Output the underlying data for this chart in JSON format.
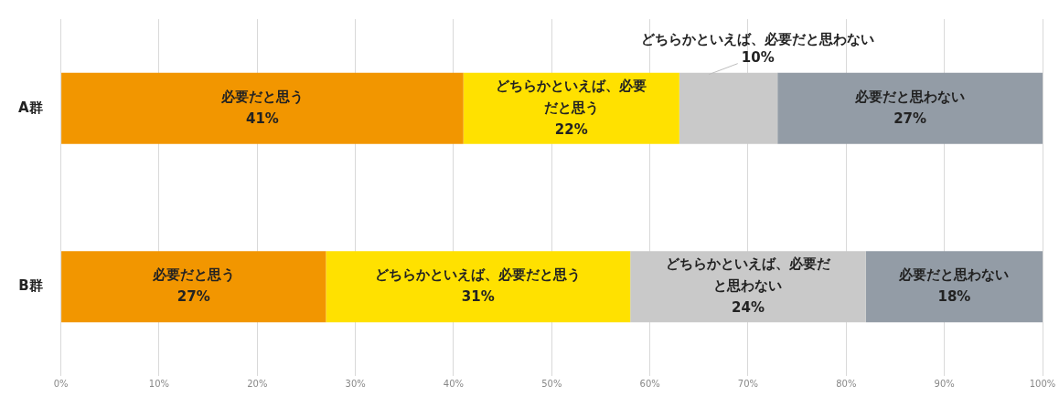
{
  "chart_data": {
    "type": "bar",
    "orientation": "horizontal",
    "stacked": true,
    "categories": [
      "A群",
      "B群"
    ],
    "series": [
      {
        "name": "必要だと思う",
        "color": "#f29600",
        "values": [
          41,
          27
        ],
        "value_labels": [
          "41%",
          "27%"
        ]
      },
      {
        "name": "どちらかといえば、必要だと思う",
        "color": "#ffe100",
        "values": [
          22,
          31
        ],
        "value_labels": [
          "22%",
          "31%"
        ]
      },
      {
        "name": "どちらかといえば、必要だと思わない",
        "color": "#c9c9c9",
        "values": [
          10,
          24
        ],
        "value_labels": [
          "10%",
          "24%"
        ]
      },
      {
        "name": "必要だと思わない",
        "color": "#939ca6",
        "values": [
          27,
          18
        ],
        "value_labels": [
          "27%",
          "18%"
        ]
      }
    ],
    "xlim": [
      0,
      100
    ],
    "xticks": [
      {
        "value": 0,
        "label": "0%"
      },
      {
        "value": 10,
        "label": "10%"
      },
      {
        "value": 20,
        "label": "20%"
      },
      {
        "value": 30,
        "label": "30%"
      },
      {
        "value": 40,
        "label": "40%"
      },
      {
        "value": 50,
        "label": "50%"
      },
      {
        "value": 60,
        "label": "60%"
      },
      {
        "value": 70,
        "label": "70%"
      },
      {
        "value": 80,
        "label": "80%"
      },
      {
        "value": 90,
        "label": "90%"
      },
      {
        "value": 100,
        "label": "100%"
      }
    ],
    "grid": "x",
    "legend": false
  }
}
